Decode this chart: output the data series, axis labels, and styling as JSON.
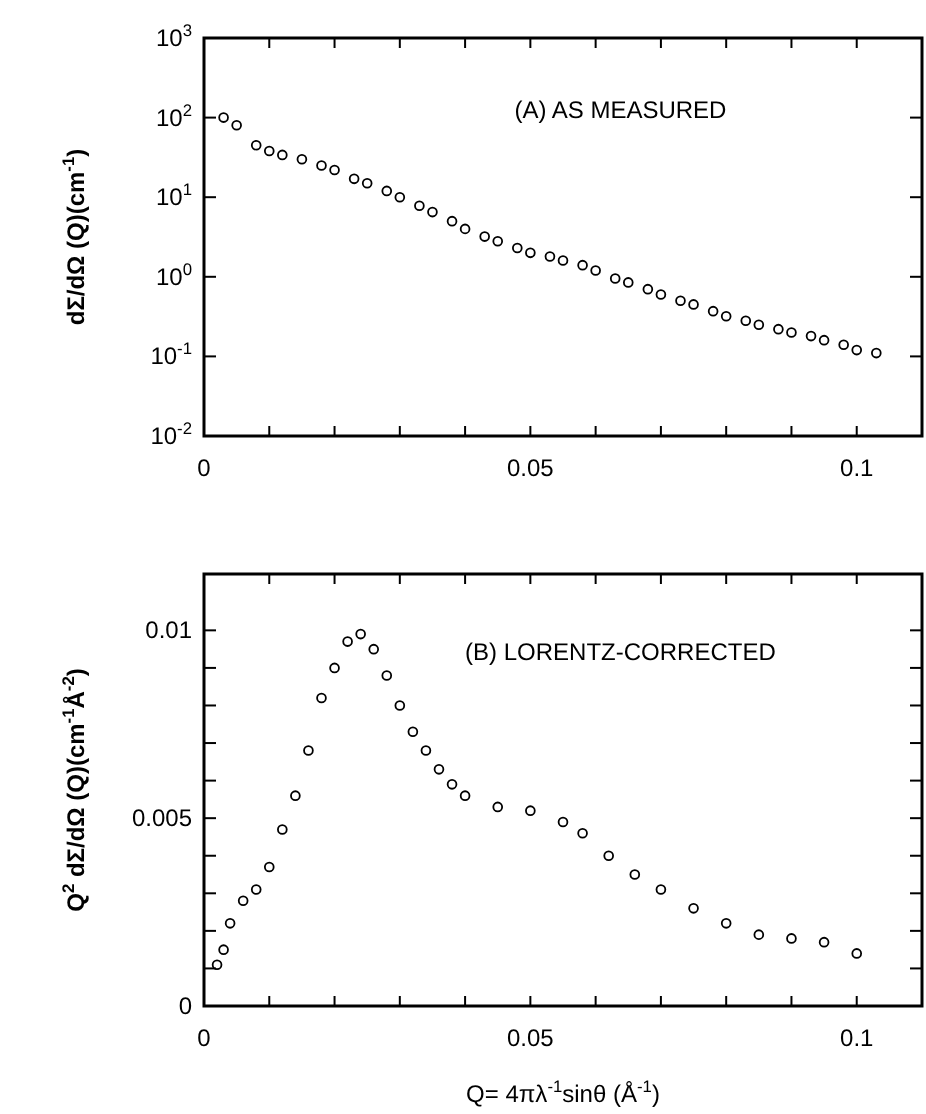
{
  "chart_data": [
    {
      "type": "scatter",
      "annotations": [
        "(A) AS MEASURED"
      ],
      "ylabel": "dΣ/dΩ (Q)(cm$^{-1}$)",
      "log": "y",
      "marker": "circle",
      "xlim": [
        0,
        0.11
      ],
      "ylim": [
        0.01,
        1000
      ],
      "xticks": [
        0,
        {
          "value": 0.01,
          "label": null
        },
        {
          "value": 0.02,
          "label": null
        },
        {
          "value": 0.03,
          "label": null
        },
        {
          "value": 0.04,
          "label": null
        },
        0.05,
        {
          "value": 0.06,
          "label": null
        },
        {
          "value": 0.07,
          "label": null
        },
        {
          "value": 0.08,
          "label": null
        },
        {
          "value": 0.09,
          "label": null
        },
        0.1
      ],
      "yticks": [
        {
          "value": 0.01,
          "label": "10$^{-2}$"
        },
        {
          "value": 0.1,
          "label": "10$^{-1}$"
        },
        {
          "value": 1,
          "label": "10$^{0}$"
        },
        {
          "value": 10,
          "label": "10$^{1}$"
        },
        {
          "value": 100,
          "label": "10$^{2}$"
        },
        {
          "value": 1000,
          "label": "10$^{3}$"
        }
      ],
      "x": [
        0.003,
        0.005,
        0.008,
        0.01,
        0.012,
        0.015,
        0.018,
        0.02,
        0.023,
        0.025,
        0.028,
        0.03,
        0.033,
        0.035,
        0.038,
        0.04,
        0.043,
        0.045,
        0.048,
        0.05,
        0.053,
        0.055,
        0.058,
        0.06,
        0.063,
        0.065,
        0.068,
        0.07,
        0.073,
        0.075,
        0.078,
        0.08,
        0.083,
        0.085,
        0.088,
        0.09,
        0.093,
        0.095,
        0.098,
        0.1,
        0.103
      ],
      "series": [
        {
          "color": "#000000",
          "values": [
            100,
            80,
            45,
            38,
            34,
            30,
            25,
            22,
            17,
            15,
            12,
            10,
            7.8,
            6.5,
            5,
            4,
            3.2,
            2.8,
            2.3,
            2.0,
            1.8,
            1.6,
            1.4,
            1.2,
            0.95,
            0.85,
            0.7,
            0.6,
            0.5,
            0.45,
            0.37,
            0.32,
            0.28,
            0.25,
            0.22,
            0.2,
            0.18,
            0.16,
            0.14,
            0.12,
            0.11
          ]
        }
      ]
    },
    {
      "type": "scatter",
      "annotations": [
        "(B) LORENTZ-CORRECTED"
      ],
      "xlabel": "Q= 4πλ$^{-1}$sinθ (Å$^{-1}$)",
      "ylabel": "Q$^{2}$ dΣ/dΩ (Q)(cm$^{-1}$Å$^{-2}$)",
      "marker": "circle",
      "xlim": [
        0,
        0.11
      ],
      "ylim": [
        0,
        0.0115
      ],
      "xticks": [
        0,
        {
          "value": 0.01,
          "label": null
        },
        {
          "value": 0.02,
          "label": null
        },
        {
          "value": 0.03,
          "label": null
        },
        {
          "value": 0.04,
          "label": null
        },
        0.05,
        {
          "value": 0.06,
          "label": null
        },
        {
          "value": 0.07,
          "label": null
        },
        {
          "value": 0.08,
          "label": null
        },
        {
          "value": 0.09,
          "label": null
        },
        0.1
      ],
      "yticks": [
        0,
        {
          "value": 0.001,
          "label": null
        },
        {
          "value": 0.002,
          "label": null
        },
        {
          "value": 0.003,
          "label": null
        },
        {
          "value": 0.004,
          "label": null
        },
        0.005,
        {
          "value": 0.006,
          "label": null
        },
        {
          "value": 0.007,
          "label": null
        },
        {
          "value": 0.008,
          "label": null
        },
        {
          "value": 0.009,
          "label": null
        },
        0.01
      ],
      "x": [
        0.002,
        0.003,
        0.004,
        0.006,
        0.008,
        0.01,
        0.012,
        0.014,
        0.016,
        0.018,
        0.02,
        0.022,
        0.024,
        0.026,
        0.028,
        0.03,
        0.032,
        0.034,
        0.036,
        0.038,
        0.04,
        0.045,
        0.05,
        0.055,
        0.058,
        0.062,
        0.066,
        0.07,
        0.075,
        0.08,
        0.085,
        0.09,
        0.095,
        0.1
      ],
      "series": [
        {
          "color": "#000000",
          "values": [
            0.0011,
            0.0015,
            0.0022,
            0.0028,
            0.0031,
            0.0037,
            0.0047,
            0.0056,
            0.0068,
            0.0082,
            0.009,
            0.0097,
            0.0099,
            0.0095,
            0.0088,
            0.008,
            0.0073,
            0.0068,
            0.0063,
            0.0059,
            0.0056,
            0.0053,
            0.0052,
            0.0049,
            0.0046,
            0.004,
            0.0035,
            0.0031,
            0.0026,
            0.0022,
            0.0019,
            0.0018,
            0.0017,
            0.0014
          ]
        }
      ]
    }
  ]
}
